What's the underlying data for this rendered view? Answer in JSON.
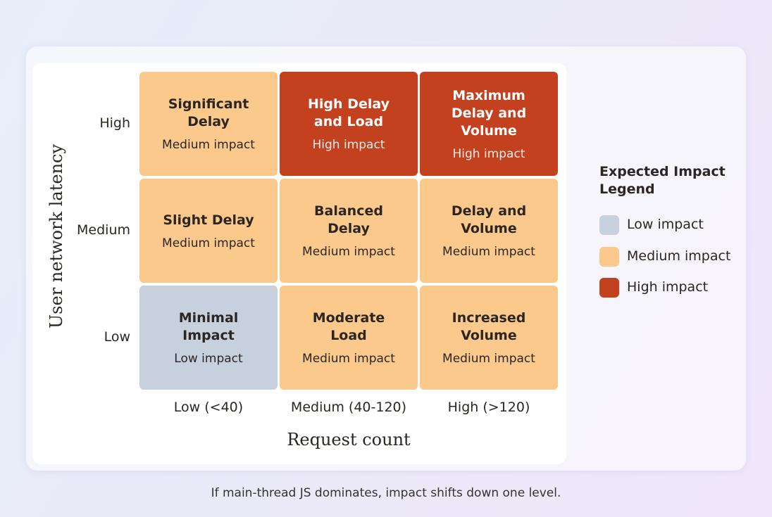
{
  "y_axis_title": "User network latency",
  "x_axis_title": "Request count",
  "rows": [
    {
      "label": "High",
      "cells": [
        {
          "title": "Significant Delay",
          "impact": "Medium impact"
        },
        {
          "title": "High Delay and Load",
          "impact": "High impact"
        },
        {
          "title": "Maximum Delay and Volume",
          "impact": "High impact"
        }
      ]
    },
    {
      "label": "Medium",
      "cells": [
        {
          "title": "Slight Delay",
          "impact": "Medium impact"
        },
        {
          "title": "Balanced Delay",
          "impact": "Medium impact"
        },
        {
          "title": "Delay and Volume",
          "impact": "Medium impact"
        }
      ]
    },
    {
      "label": "Low",
      "cells": [
        {
          "title": "Minimal Impact",
          "impact": "Low impact"
        },
        {
          "title": "Moderate Load",
          "impact": "Medium impact"
        },
        {
          "title": "Increased Volume",
          "impact": "Medium impact"
        }
      ]
    }
  ],
  "columns": [
    "Low (<40)",
    "Medium (40-120)",
    "High (>120)"
  ],
  "legend": {
    "title": "Expected Impact Legend",
    "items": [
      {
        "label": "Low impact",
        "color": "#c6d1dd"
      },
      {
        "label": "Medium impact",
        "color": "#fbc98b"
      },
      {
        "label": "High impact",
        "color": "#c4411f"
      }
    ]
  },
  "footnote": "If main-thread JS dominates, impact shifts down one level."
}
